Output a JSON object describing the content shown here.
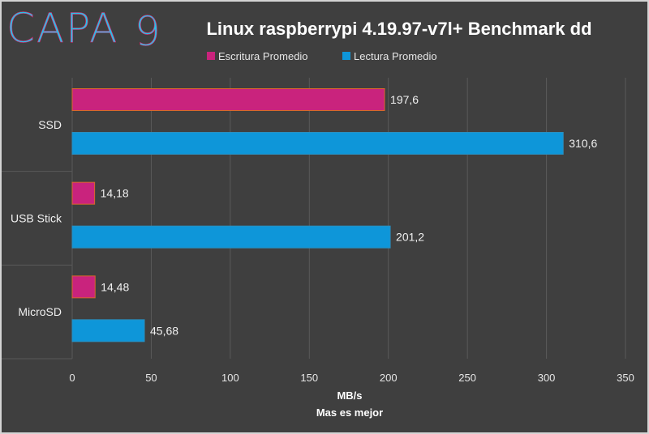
{
  "logo": {
    "text": "CAPA",
    "numeral": "9"
  },
  "colors": {
    "write": "#c9237d",
    "read": "#0e96d9",
    "logo_pink": "#e6256f",
    "logo_cyan": "#26c3e8"
  },
  "chart_data": {
    "type": "bar",
    "orientation": "horizontal",
    "title": "Linux raspberrypi 4.19.97-v7l+ Benchmark dd",
    "categories": [
      "SSD",
      "USB Stick",
      "MicroSD"
    ],
    "series": [
      {
        "name": "Escritura Promedio",
        "values": [
          197.6,
          14.18,
          14.48
        ],
        "labels": [
          "197,6",
          "14,18",
          "14,48"
        ]
      },
      {
        "name": "Lectura Promedio",
        "values": [
          310.6,
          201.2,
          45.68
        ],
        "labels": [
          "310,6",
          "201,2",
          "45,68"
        ]
      }
    ],
    "xlabel": "MB/s",
    "xlabel_sub": "Mas es mejor",
    "xlim": [
      0,
      350
    ],
    "xticks": [
      0,
      50,
      100,
      150,
      200,
      250,
      300,
      350
    ],
    "grid": true,
    "legend_position": "top"
  }
}
